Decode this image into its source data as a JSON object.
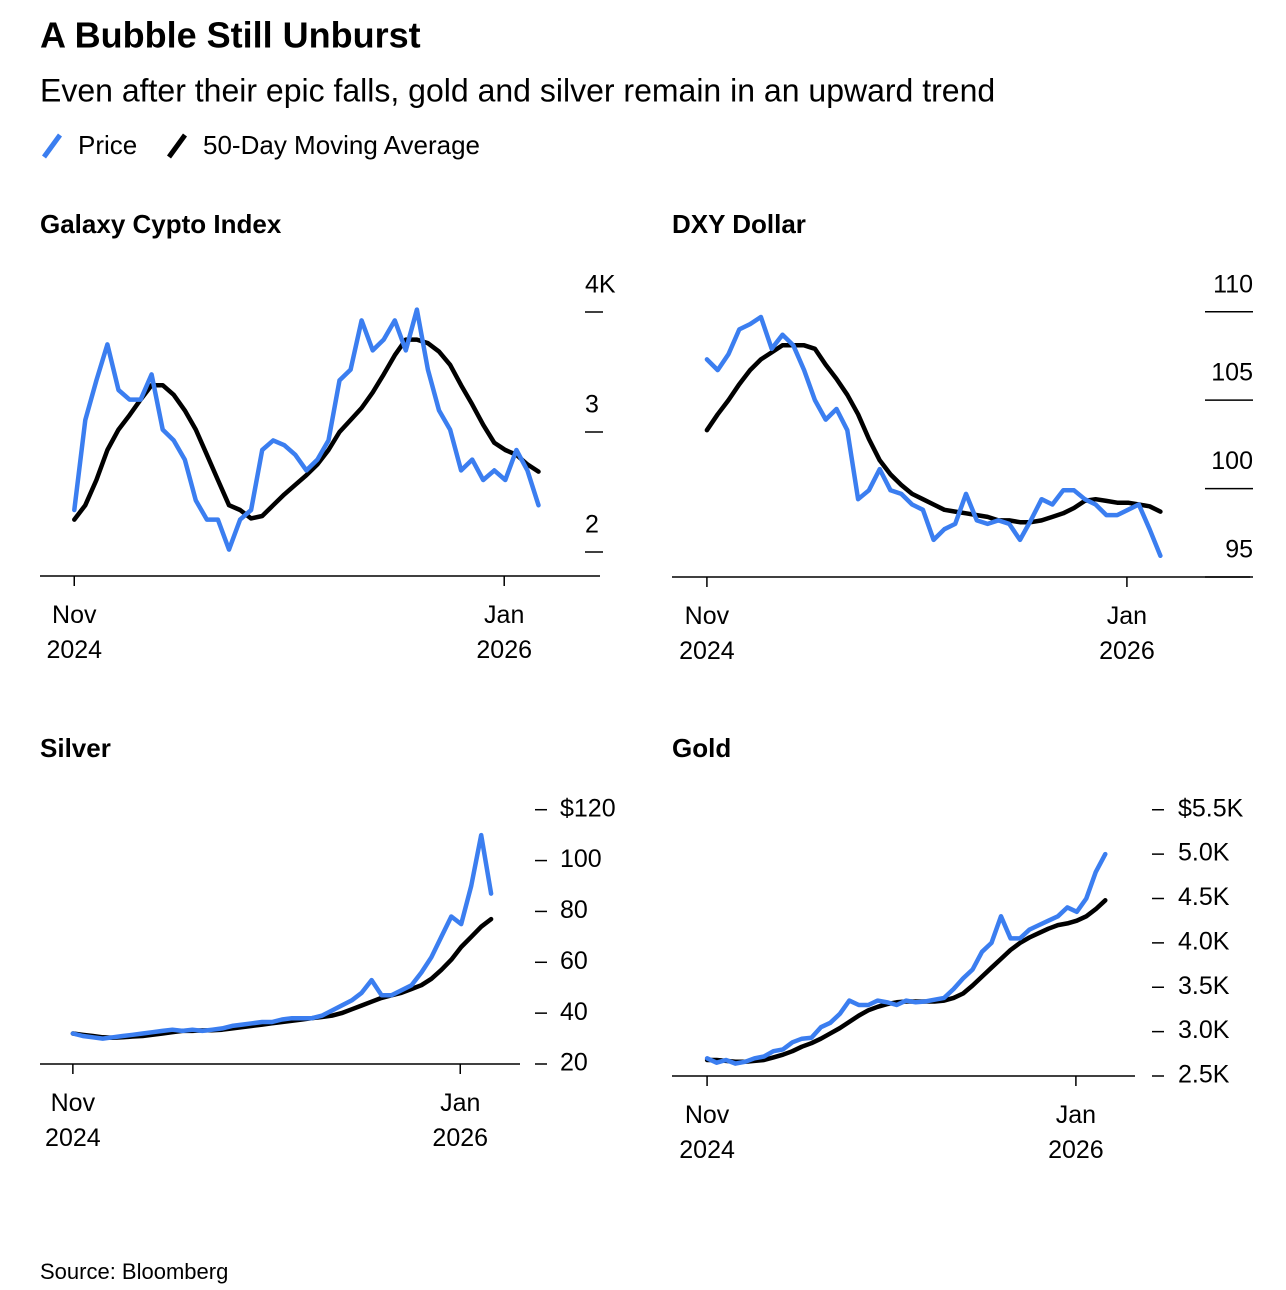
{
  "title": "A Bubble Still Unburst",
  "subtitle": "Even after their epic falls, gold and silver remain in an upward trend",
  "source": "Source: Bloomberg",
  "chart_data": [
    {
      "type": "line",
      "title": "Galaxy Cypto Index",
      "x": [
        2024.833,
        2024.863,
        2024.893,
        2024.923,
        2024.953,
        2024.983,
        2025.013,
        2025.043,
        2025.073,
        2025.103,
        2025.133,
        2025.163,
        2025.193,
        2025.223,
        2025.253,
        2025.283,
        2025.313,
        2025.343,
        2025.373,
        2025.403,
        2025.433,
        2025.463,
        2025.493,
        2025.523,
        2025.553,
        2025.583,
        2025.613,
        2025.643,
        2025.673,
        2025.703,
        2025.733,
        2025.763,
        2025.793,
        2025.823,
        2025.853,
        2025.883,
        2025.913,
        2025.943,
        2025.973,
        2026.003,
        2026.033,
        2026.063,
        2026.093
      ],
      "series": [
        {
          "name": "Price",
          "color": "#3b7ef0",
          "values": [
            2.35,
            3.1,
            3.43,
            3.73,
            3.35,
            3.27,
            3.27,
            3.48,
            3.02,
            2.93,
            2.77,
            2.43,
            2.27,
            2.27,
            2.02,
            2.27,
            2.35,
            2.85,
            2.93,
            2.89,
            2.81,
            2.68,
            2.77,
            2.93,
            3.43,
            3.52,
            3.93,
            3.68,
            3.77,
            3.93,
            3.68,
            4.02,
            3.52,
            3.18,
            3.02,
            2.68,
            2.77,
            2.6,
            2.68,
            2.6,
            2.85,
            2.68,
            2.39
          ]
        },
        {
          "name": "50-Day Moving Average",
          "color": "#000000",
          "values": [
            2.27,
            2.39,
            2.6,
            2.85,
            3.02,
            3.14,
            3.27,
            3.39,
            3.39,
            3.31,
            3.18,
            3.02,
            2.81,
            2.6,
            2.39,
            2.35,
            2.28,
            2.3,
            2.39,
            2.48,
            2.56,
            2.64,
            2.73,
            2.85,
            3.0,
            3.1,
            3.2,
            3.33,
            3.48,
            3.64,
            3.77,
            3.77,
            3.74,
            3.67,
            3.56,
            3.39,
            3.23,
            3.06,
            2.91,
            2.85,
            2.81,
            2.73,
            2.67
          ]
        }
      ],
      "xlim": [
        2024.74,
        2026.26
      ],
      "xticks": [
        {
          "value": 2024.833,
          "label": "Nov 2024"
        },
        {
          "value": 2026,
          "label": "Jan 2026"
        }
      ],
      "ylim": [
        1.8,
        4.15
      ],
      "yticks": [
        {
          "value": 4,
          "label": "4K"
        },
        3,
        2
      ]
    },
    {
      "type": "line",
      "title": "DXY Dollar",
      "x": [
        2024.833,
        2024.863,
        2024.893,
        2024.923,
        2024.953,
        2024.983,
        2025.013,
        2025.043,
        2025.073,
        2025.103,
        2025.133,
        2025.163,
        2025.193,
        2025.223,
        2025.253,
        2025.283,
        2025.313,
        2025.343,
        2025.373,
        2025.403,
        2025.433,
        2025.463,
        2025.493,
        2025.523,
        2025.553,
        2025.583,
        2025.613,
        2025.643,
        2025.673,
        2025.703,
        2025.733,
        2025.763,
        2025.793,
        2025.823,
        2025.853,
        2025.883,
        2025.913,
        2025.943,
        2025.973,
        2026.003,
        2026.033,
        2026.063,
        2026.093
      ],
      "series": [
        {
          "name": "Price",
          "color": "#3b7ef0",
          "values": [
            107.3,
            106.7,
            107.6,
            109.0,
            109.3,
            109.7,
            107.9,
            108.7,
            108.1,
            106.7,
            105.0,
            103.9,
            104.5,
            103.3,
            99.4,
            99.9,
            101.1,
            99.9,
            99.7,
            99.1,
            98.8,
            97.1,
            97.7,
            98.0,
            99.7,
            98.2,
            98.0,
            98.2,
            98.0,
            97.1,
            98.2,
            99.4,
            99.1,
            99.9,
            99.9,
            99.4,
            99.1,
            98.5,
            98.5,
            98.8,
            99.1,
            97.7,
            96.2
          ]
        },
        {
          "name": "50-Day Moving Average",
          "color": "#000000",
          "values": [
            103.3,
            104.2,
            105.0,
            105.9,
            106.7,
            107.3,
            107.7,
            108.1,
            108.1,
            108.1,
            107.9,
            107.0,
            106.2,
            105.3,
            104.2,
            102.8,
            101.6,
            100.8,
            100.2,
            99.7,
            99.4,
            99.1,
            98.8,
            98.7,
            98.6,
            98.5,
            98.4,
            98.2,
            98.2,
            98.1,
            98.1,
            98.2,
            98.4,
            98.6,
            98.9,
            99.3,
            99.4,
            99.3,
            99.2,
            99.2,
            99.1,
            99.0,
            98.7
          ]
        }
      ],
      "xlim": [
        2024.736,
        2026.342
      ],
      "xticks": [
        {
          "value": 2024.833,
          "label": "Nov 2024"
        },
        {
          "value": 2026,
          "label": "Jan 2026"
        }
      ],
      "ylim": [
        95,
        111
      ],
      "yticks": [
        110,
        105,
        100,
        95
      ]
    },
    {
      "type": "line",
      "title": "Silver",
      "x": [
        2024.833,
        2024.863,
        2024.893,
        2024.923,
        2024.953,
        2024.983,
        2025.013,
        2025.043,
        2025.073,
        2025.103,
        2025.133,
        2025.163,
        2025.193,
        2025.223,
        2025.253,
        2025.283,
        2025.313,
        2025.343,
        2025.373,
        2025.403,
        2025.433,
        2025.463,
        2025.493,
        2025.523,
        2025.553,
        2025.583,
        2025.613,
        2025.643,
        2025.673,
        2025.703,
        2025.733,
        2025.763,
        2025.793,
        2025.823,
        2025.853,
        2025.883,
        2025.913,
        2025.943,
        2025.973,
        2026.003,
        2026.033,
        2026.063,
        2026.093
      ],
      "series": [
        {
          "name": "Price",
          "color": "#3b7ef0",
          "values": [
            32,
            31,
            30.5,
            30,
            30.5,
            31,
            31.5,
            32,
            32.5,
            33,
            33.5,
            33,
            33.5,
            33,
            33.5,
            34,
            35,
            35.5,
            36,
            36.5,
            36.5,
            37.5,
            38,
            38,
            38,
            39,
            41,
            43,
            45,
            48,
            53,
            47,
            47,
            49,
            51,
            56,
            62,
            70,
            78,
            75,
            90,
            110,
            87
          ]
        },
        {
          "name": "50-Day Moving Average",
          "color": "#000000",
          "values": [
            32,
            31.5,
            31,
            30.5,
            30.3,
            30.5,
            30.8,
            31,
            31.5,
            32,
            32.5,
            33,
            33,
            33.2,
            33.3,
            33.5,
            34,
            34.5,
            35,
            35.5,
            36,
            36.5,
            37,
            37.5,
            38,
            38.5,
            39,
            40,
            41.5,
            43,
            44.5,
            46,
            47,
            48,
            49.5,
            51,
            53.5,
            57,
            61,
            66,
            70,
            74,
            77
          ]
        }
      ],
      "xlim": [
        2024.734,
        2026.18
      ],
      "xticks": [
        {
          "value": 2024.833,
          "label": "Nov 2024"
        },
        {
          "value": 2026,
          "label": "Jan 2026"
        }
      ],
      "ylim": [
        20,
        125
      ],
      "yticks": [
        {
          "value": 120,
          "label": "$120"
        },
        100,
        80,
        60,
        40,
        20
      ]
    },
    {
      "type": "line",
      "title": "Gold",
      "x": [
        2024.833,
        2024.863,
        2024.893,
        2024.923,
        2024.953,
        2024.983,
        2025.013,
        2025.043,
        2025.073,
        2025.103,
        2025.133,
        2025.163,
        2025.193,
        2025.223,
        2025.253,
        2025.283,
        2025.313,
        2025.343,
        2025.373,
        2025.403,
        2025.433,
        2025.463,
        2025.493,
        2025.523,
        2025.553,
        2025.583,
        2025.613,
        2025.643,
        2025.673,
        2025.703,
        2025.733,
        2025.763,
        2025.793,
        2025.823,
        2025.853,
        2025.883,
        2025.913,
        2025.943,
        2025.973,
        2026.003,
        2026.033,
        2026.063,
        2026.093
      ],
      "series": [
        {
          "name": "Price",
          "color": "#3b7ef0",
          "values": [
            2700,
            2650,
            2680,
            2640,
            2660,
            2700,
            2720,
            2780,
            2800,
            2880,
            2920,
            2930,
            3050,
            3100,
            3200,
            3350,
            3300,
            3300,
            3350,
            3330,
            3300,
            3350,
            3330,
            3340,
            3360,
            3380,
            3480,
            3600,
            3700,
            3900,
            4000,
            4300,
            4050,
            4050,
            4150,
            4200,
            4250,
            4300,
            4400,
            4350,
            4500,
            4800,
            5000
          ]
        },
        {
          "name": "50-Day Moving Average",
          "color": "#000000",
          "values": [
            2680,
            2680,
            2670,
            2660,
            2660,
            2670,
            2680,
            2710,
            2740,
            2780,
            2830,
            2870,
            2920,
            2980,
            3040,
            3110,
            3180,
            3240,
            3280,
            3310,
            3330,
            3340,
            3340,
            3340,
            3340,
            3350,
            3380,
            3430,
            3520,
            3620,
            3720,
            3820,
            3920,
            4000,
            4060,
            4110,
            4160,
            4200,
            4220,
            4250,
            4300,
            4380,
            4480
          ]
        }
      ],
      "xlim": [
        2024.722,
        2026.187
      ],
      "xticks": [
        {
          "value": 2024.833,
          "label": "Nov 2024"
        },
        {
          "value": 2026,
          "label": "Jan 2026"
        }
      ],
      "ylim": [
        2500,
        5700
      ],
      "yticks": [
        {
          "value": 5500,
          "label": "$5.5K"
        },
        {
          "value": 5000,
          "label": "5.0K"
        },
        {
          "value": 4500,
          "label": "4.5K"
        },
        {
          "value": 4000,
          "label": "4.0K"
        },
        {
          "value": 3500,
          "label": "3.5K"
        },
        {
          "value": 3000,
          "label": "3.0K"
        },
        {
          "value": 2500,
          "label": "2.5K"
        }
      ]
    }
  ]
}
